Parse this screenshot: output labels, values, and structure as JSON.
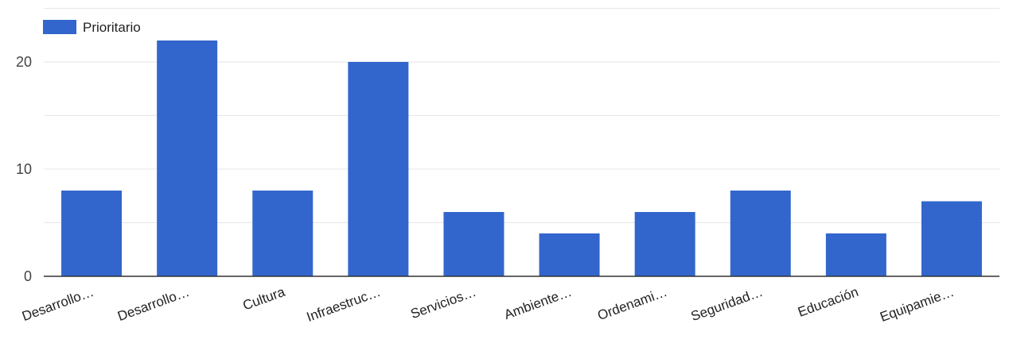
{
  "chart_data": {
    "type": "bar",
    "categories": [
      "Desarrollo…",
      "Desarrollo…",
      "Cultura",
      "Infraestruc…",
      "Servicios…",
      "Ambiente…",
      "Ordenami…",
      "Seguridad…",
      "Educación",
      "Equipamie…"
    ],
    "series": [
      {
        "name": "Prioritario",
        "values": [
          8,
          22,
          8,
          20,
          6,
          4,
          6,
          8,
          4,
          7
        ]
      }
    ],
    "ylim": [
      0,
      25
    ],
    "yticks": [
      "0",
      "10",
      "20"
    ],
    "grid": true,
    "legend": "top-left",
    "colors": {
      "bar": "#3366cc",
      "gridline": "#e6e6e6",
      "axis": "#333333"
    }
  }
}
